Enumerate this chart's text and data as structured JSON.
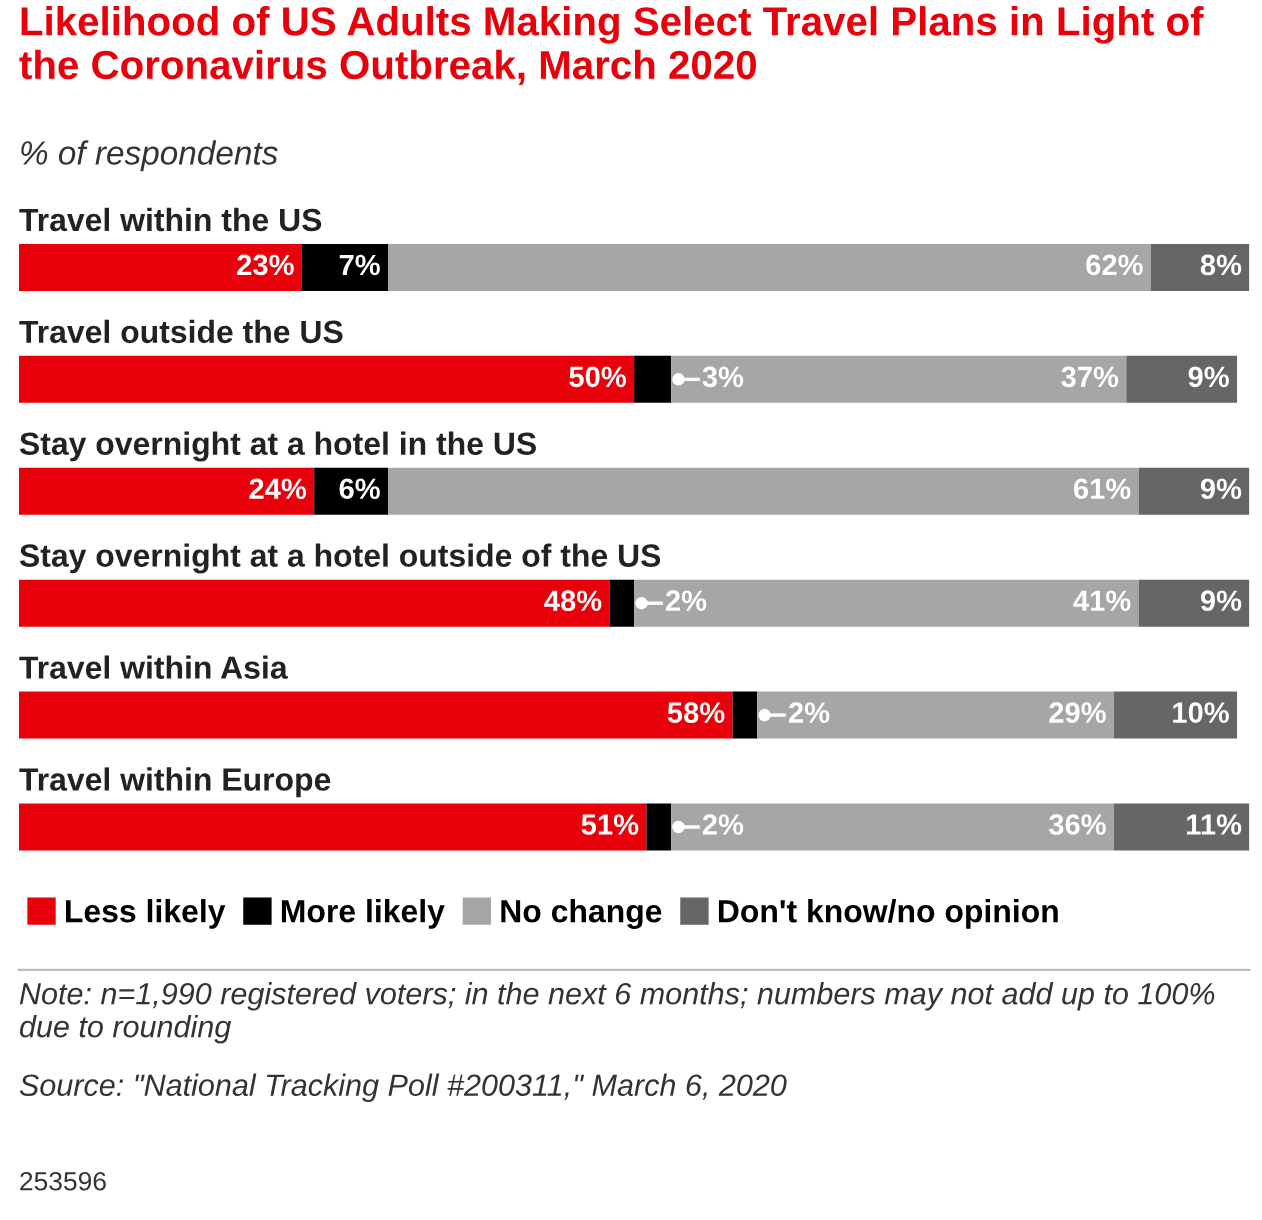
{
  "chart_data": {
    "type": "bar",
    "orientation": "horizontal",
    "stacked": true,
    "title": "Likelihood of US Adults Making Select Travel Plans in Light of the Coronavirus Outbreak, March 2020",
    "subtitle": "% of respondents",
    "categories": [
      "Travel within the US",
      "Travel outside the US",
      "Stay overnight at a hotel in the US",
      "Stay overnight at a hotel outside of the US",
      "Travel within Asia",
      "Travel within Europe"
    ],
    "series": [
      {
        "name": "Less likely",
        "color": "#e8000b",
        "values": [
          23,
          50,
          24,
          48,
          58,
          51
        ],
        "value_labels": [
          "23%",
          "50%",
          "24%",
          "48%",
          "58%",
          "51%"
        ]
      },
      {
        "name": "More likely",
        "color": "#000000",
        "values": [
          7,
          3,
          6,
          2,
          2,
          2
        ],
        "value_labels": [
          "7%",
          "3%",
          "6%",
          "2%",
          "2%",
          "2%"
        ]
      },
      {
        "name": "No change",
        "color": "#a6a6a6",
        "values": [
          62,
          37,
          61,
          41,
          29,
          36
        ],
        "value_labels": [
          "62%",
          "37%",
          "61%",
          "41%",
          "29%",
          "36%"
        ]
      },
      {
        "name": "Don't know/no opinion",
        "color": "#666666",
        "values": [
          8,
          9,
          9,
          9,
          10,
          11
        ],
        "value_labels": [
          "8%",
          "9%",
          "9%",
          "9%",
          "10%",
          "11%"
        ]
      }
    ],
    "legend": "bottom",
    "tick_labels": false,
    "grid": false,
    "annotations": [
      "Note: n=1,990 registered voters; in the next 6 months; numbers may not add up to 100% due to rounding",
      "Source: \"National Tracking Poll #200311,\" March 6, 2020",
      "253596"
    ]
  }
}
